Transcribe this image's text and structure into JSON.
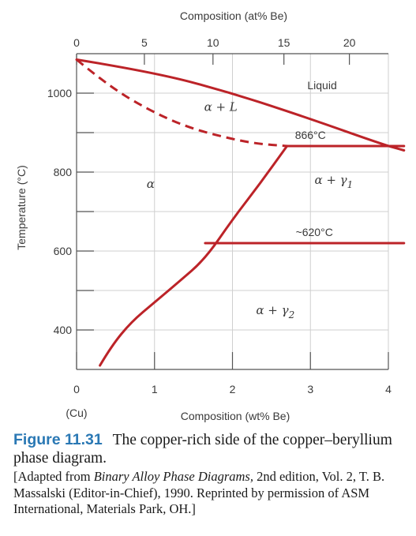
{
  "chart_data": {
    "type": "line",
    "title": "",
    "xlabel": "Composition (wt% Be)",
    "xlabel_note": "(Cu)",
    "x2label": "Composition (at% Be)",
    "ylabel": "Temperature (°C)",
    "xlim": [
      0,
      4
    ],
    "ylim": [
      300,
      1100
    ],
    "x_ticks": [
      0,
      1,
      2,
      3,
      4
    ],
    "x_tick_labels": [
      "0",
      "1",
      "2",
      "3",
      "4"
    ],
    "y_ticks": [
      400,
      600,
      800,
      1000
    ],
    "y_tick_labels": [
      "400",
      "600",
      "800",
      "1000"
    ],
    "top_axis_ticks_at_pct": [
      0,
      5,
      10,
      15,
      20
    ],
    "top_axis_tick_labels": [
      "0",
      "5",
      "10",
      "15",
      "20"
    ],
    "top_axis_tick_positions_wt": [
      0.0,
      0.87,
      1.75,
      2.66,
      3.5
    ],
    "grid": true,
    "line_color": "#bc2328",
    "series": [
      {
        "style": "solid",
        "x": [
          0.0,
          1.0,
          2.0,
          3.0,
          3.9,
          4.2
        ],
        "y": [
          1085,
          1053,
          1000,
          935,
          872,
          855
        ]
      },
      {
        "style": "dashed",
        "x": [
          0.0,
          0.4,
          0.9,
          1.4,
          1.9,
          2.3,
          2.7
        ],
        "y": [
          1085,
          1020,
          960,
          915,
          888,
          872,
          866
        ]
      },
      {
        "style": "solid",
        "x": [
          0.3,
          0.45,
          0.7,
          1.0,
          1.3,
          1.65,
          2.0,
          2.35,
          2.7
        ],
        "y": [
          310,
          360,
          420,
          470,
          520,
          580,
          680,
          770,
          866
        ]
      },
      {
        "style": "solid",
        "x": [
          2.7,
          4.2
        ],
        "y": [
          866,
          866
        ]
      },
      {
        "style": "solid",
        "x": [
          1.65,
          4.2
        ],
        "y": [
          620,
          620
        ]
      }
    ],
    "annotations": [
      {
        "text": "Liquid",
        "x": 3.15,
        "y": 1010,
        "kind": "annot"
      },
      {
        "text": "α + L",
        "x": 1.85,
        "y": 955,
        "kind": "phase"
      },
      {
        "text": "866°C",
        "x": 3.0,
        "y": 884,
        "kind": "annot"
      },
      {
        "text": "α",
        "x": 0.95,
        "y": 760,
        "kind": "phase"
      },
      {
        "text": "α + γ",
        "sub": "1",
        "x": 3.3,
        "y": 770,
        "kind": "phase"
      },
      {
        "text": "~620°C",
        "x": 3.05,
        "y": 638,
        "kind": "annot"
      },
      {
        "text": "α + γ",
        "sub": "2",
        "x": 2.55,
        "y": 440,
        "kind": "phase"
      }
    ]
  },
  "caption": {
    "figure_number": "Figure 11.31",
    "title_line": "The copper-rich side of the copper–beryllium phase diagram.",
    "source_prefix": "[Adapted from ",
    "source_book": "Binary Alloy Phase Diagrams,",
    "source_suffix": " 2nd edition, Vol. 2, T. B. Massalski (Editor-in-Chief), 1990. Reprinted by permission of ASM International, Materials Park, OH.]"
  }
}
